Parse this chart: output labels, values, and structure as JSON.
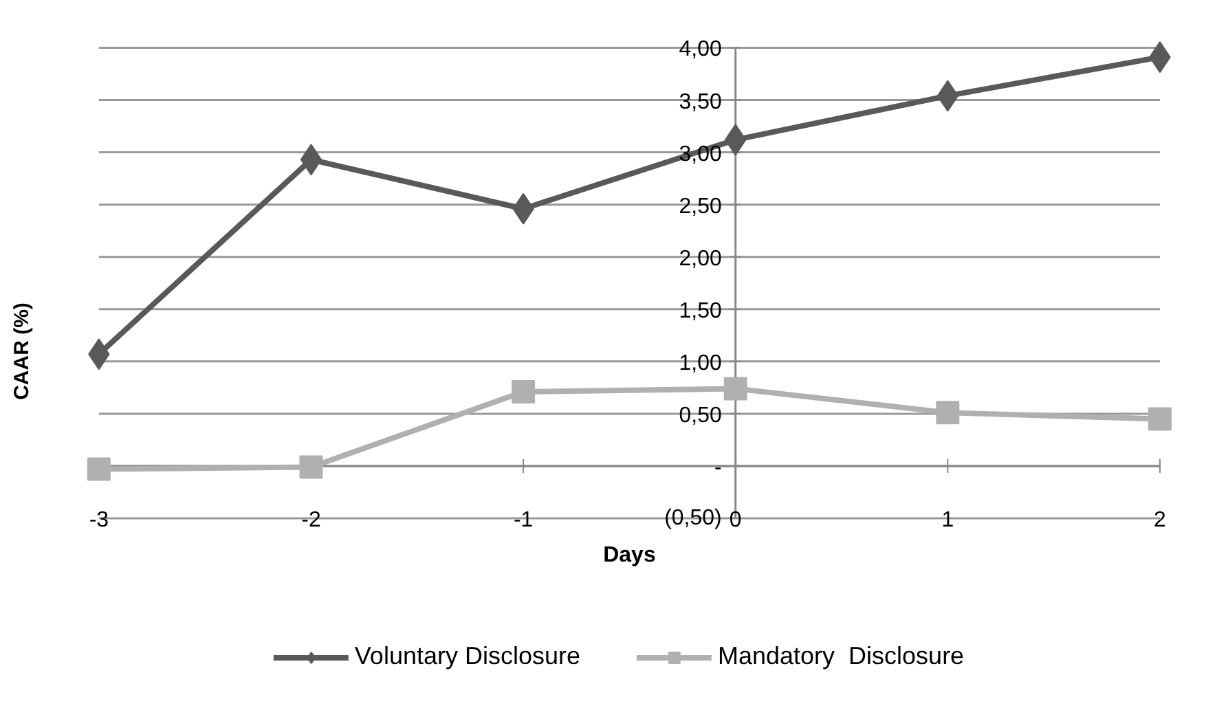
{
  "chart_data": {
    "type": "line",
    "xlabel": "Days",
    "ylabel": "CAAR (%)",
    "x": [
      -3,
      -2,
      -1,
      0,
      1,
      2
    ],
    "series": [
      {
        "name": "Voluntary Disclosure",
        "color": "#595959",
        "marker": "diamond",
        "values": [
          1.07,
          2.93,
          2.46,
          3.12,
          3.54,
          3.91
        ]
      },
      {
        "name": "Mandatory  Disclosure",
        "color": "#b0b0b0",
        "marker": "square",
        "values": [
          -0.03,
          -0.01,
          0.71,
          0.74,
          0.51,
          0.45
        ]
      }
    ],
    "xlim": [
      -3,
      2
    ],
    "xticks": [
      -3,
      -2,
      -1,
      0,
      1,
      2
    ],
    "ylim": [
      -0.5,
      4.0
    ],
    "yticks": [
      {
        "value": -0.5,
        "label": "(0,50)"
      },
      {
        "value": 0,
        "label": "-"
      },
      {
        "value": 0.5,
        "label": "0,50"
      },
      {
        "value": 1.0,
        "label": "1,00"
      },
      {
        "value": 1.5,
        "label": "1,50"
      },
      {
        "value": 2.0,
        "label": "2,00"
      },
      {
        "value": 2.5,
        "label": "2,50"
      },
      {
        "value": 3.0,
        "label": "3,00"
      },
      {
        "value": 3.5,
        "label": "3,50"
      },
      {
        "value": 4.0,
        "label": "4,00"
      }
    ],
    "grid": "y",
    "legend": "bottom",
    "line_style": "solid"
  }
}
